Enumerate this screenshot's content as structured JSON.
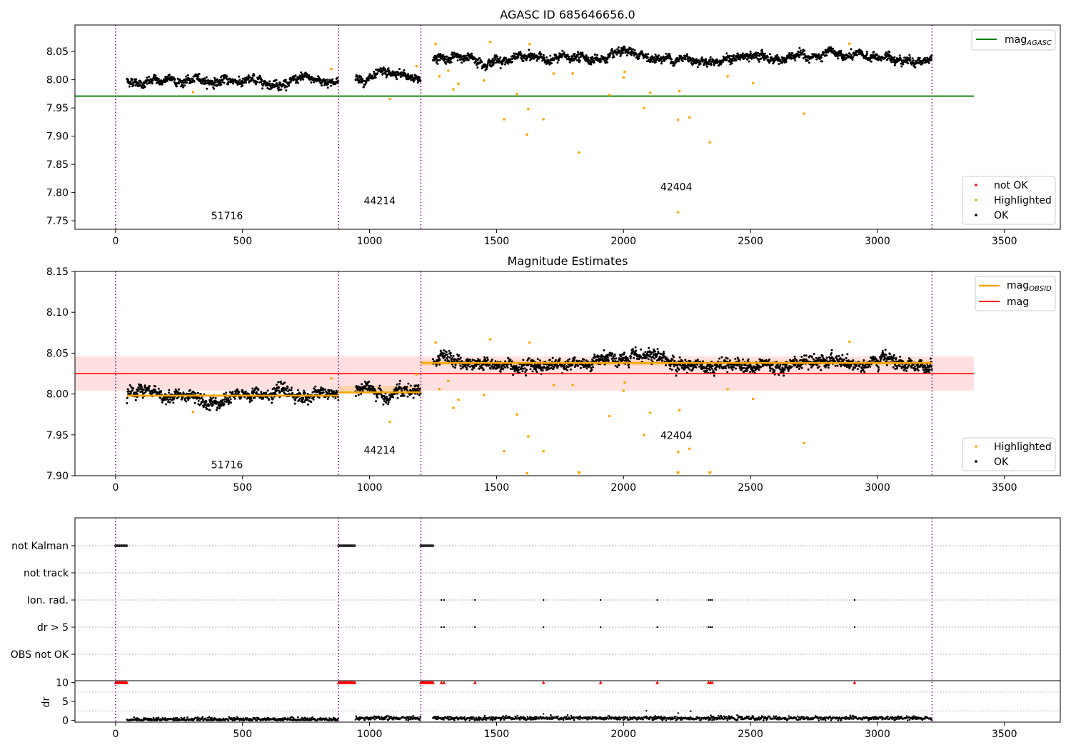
{
  "chart_data": [
    {
      "type": "scatter",
      "title": "AGASC ID 685646656.0",
      "xlim": [
        -160,
        3720
      ],
      "ylim": [
        7.735,
        8.097
      ],
      "xticks": [
        0,
        500,
        1000,
        1500,
        2000,
        2500,
        3000,
        3500
      ],
      "yticks": [
        7.75,
        7.8,
        7.85,
        7.9,
        7.95,
        8.0,
        8.05
      ],
      "grid": false,
      "legend_lines_placement": "top-right",
      "legend_points_placement": "bottom-right",
      "obsid_boundaries": [
        0,
        878,
        1202,
        3215
      ],
      "obsid_labels": [
        {
          "text": "51716",
          "x": 439,
          "y": 7.753
        },
        {
          "text": "44214",
          "x": 1040,
          "y": 7.779
        },
        {
          "text": "42404",
          "x": 2208,
          "y": 7.804
        }
      ],
      "lines": [
        {
          "name": "mag_AGASC",
          "y": 7.971,
          "xrange": [
            -160,
            3380
          ],
          "color": "#008000"
        }
      ],
      "point_legend": [
        "not OK",
        "Highlighted",
        "OK"
      ],
      "ok_segments": [
        {
          "x": [
            45,
            878
          ],
          "level": 7.998,
          "noise": 0.006
        },
        {
          "x": [
            945,
            1202
          ],
          "level": 8.003,
          "noise": 0.006
        },
        {
          "x": [
            1250,
            3215
          ],
          "level": 8.038,
          "noise": 0.006
        }
      ],
      "highlighted_points": [
        [
          305,
          7.978
        ],
        [
          850,
          8.019
        ],
        [
          1185,
          8.024
        ],
        [
          1080,
          7.966
        ],
        [
          1260,
          8.063
        ],
        [
          1275,
          8.006
        ],
        [
          1310,
          8.016
        ],
        [
          1330,
          7.983
        ],
        [
          1350,
          7.993
        ],
        [
          1450,
          7.999
        ],
        [
          1475,
          8.067
        ],
        [
          1530,
          7.93
        ],
        [
          1580,
          7.975
        ],
        [
          1620,
          7.903
        ],
        [
          1625,
          7.948
        ],
        [
          1630,
          8.063
        ],
        [
          1685,
          7.93
        ],
        [
          1725,
          8.011
        ],
        [
          1800,
          8.011
        ],
        [
          1825,
          7.871
        ],
        [
          1945,
          7.973
        ],
        [
          2000,
          8.004
        ],
        [
          2005,
          8.014
        ],
        [
          2080,
          7.95
        ],
        [
          2105,
          7.977
        ],
        [
          2215,
          7.929
        ],
        [
          2220,
          7.98
        ],
        [
          2215,
          7.765
        ],
        [
          2260,
          7.933
        ],
        [
          2340,
          7.889
        ],
        [
          2410,
          8.006
        ],
        [
          2510,
          7.994
        ],
        [
          2710,
          7.94
        ],
        [
          2890,
          8.064
        ]
      ],
      "point_colors": {
        "not_ok": "#ff0000",
        "highlighted": "#ffa500",
        "ok": "#000000"
      }
    },
    {
      "type": "scatter",
      "title": "Magnitude Estimates",
      "xlim": [
        -160,
        3720
      ],
      "ylim": [
        7.9,
        8.15
      ],
      "xticks": [
        0,
        500,
        1000,
        1500,
        2000,
        2500,
        3000,
        3500
      ],
      "yticks": [
        7.9,
        7.95,
        8.0,
        8.05,
        8.1,
        8.15
      ],
      "grid": false,
      "legend_lines_placement": "top-right",
      "legend_points_placement": "bottom-right",
      "obsid_boundaries": [
        0,
        878,
        1202,
        3215
      ],
      "obsid_labels": [
        {
          "text": "51716",
          "x": 439,
          "y": 7.909
        },
        {
          "text": "44214",
          "x": 1040,
          "y": 7.927
        },
        {
          "text": "42404",
          "x": 2208,
          "y": 7.945
        }
      ],
      "lines": [
        {
          "name": "mag_OBSID",
          "color": "#ffa500"
        },
        {
          "name": "mag",
          "color": "#ff0000"
        }
      ],
      "mag": {
        "y": 8.025,
        "band": [
          8.004,
          8.046
        ],
        "xrange": [
          -160,
          3380
        ]
      },
      "mag_obsid": [
        {
          "x": [
            45,
            878
          ],
          "y": 7.998,
          "band": [
            7.996,
            8.0
          ]
        },
        {
          "x": [
            878,
            1202
          ],
          "y": 8.002,
          "band": [
            8.0,
            8.01
          ]
        },
        {
          "x": [
            1202,
            3215
          ],
          "y": 8.038,
          "band": [
            8.035,
            8.041
          ]
        }
      ],
      "point_legend": [
        "Highlighted",
        "OK"
      ],
      "ok_segments": [
        {
          "x": [
            45,
            878
          ],
          "level": 7.998,
          "noise": 0.006
        },
        {
          "x": [
            945,
            1202
          ],
          "level": 8.003,
          "noise": 0.006
        },
        {
          "x": [
            1250,
            3215
          ],
          "level": 8.038,
          "noise": 0.006
        }
      ],
      "highlighted_points": [
        [
          305,
          7.978
        ],
        [
          850,
          8.019
        ],
        [
          1185,
          8.024
        ],
        [
          1080,
          7.966
        ],
        [
          1260,
          8.063
        ],
        [
          1275,
          8.006
        ],
        [
          1310,
          8.016
        ],
        [
          1330,
          7.983
        ],
        [
          1350,
          7.993
        ],
        [
          1450,
          7.999
        ],
        [
          1475,
          8.067
        ],
        [
          1530,
          7.93
        ],
        [
          1580,
          7.975
        ],
        [
          1620,
          7.903
        ],
        [
          1625,
          7.948
        ],
        [
          1630,
          8.063
        ],
        [
          1685,
          7.93
        ],
        [
          1725,
          8.011
        ],
        [
          1800,
          8.011
        ],
        [
          1945,
          7.973
        ],
        [
          2000,
          8.004
        ],
        [
          2005,
          8.014
        ],
        [
          2080,
          7.95
        ],
        [
          2105,
          7.977
        ],
        [
          2215,
          7.929
        ],
        [
          2220,
          7.98
        ],
        [
          2260,
          7.933
        ],
        [
          2410,
          8.006
        ],
        [
          2510,
          7.994
        ],
        [
          2710,
          7.94
        ],
        [
          2890,
          8.064
        ]
      ],
      "offscale_markers": [
        1825,
        2215,
        2340
      ],
      "point_colors": {
        "highlighted": "#ffa500",
        "ok": "#000000"
      }
    },
    {
      "type": "scatter",
      "title": "",
      "xlim": [
        -160,
        3720
      ],
      "xticks": [
        0,
        500,
        1000,
        1500,
        2000,
        2500,
        3000,
        3500
      ],
      "obsid_boundaries": [
        0,
        878,
        1202,
        3215
      ],
      "flag_rows": [
        "not Kalman",
        "not track",
        "Ion. rad.",
        "dr > 5",
        "OBS not OK"
      ],
      "flags": {
        "not Kalman": [
          [
            0,
            45
          ],
          [
            878,
            945
          ],
          [
            1202,
            1250
          ]
        ],
        "not track": [],
        "Ion. rad.": [
          1283,
          1293,
          1415,
          1685,
          1910,
          2133,
          2335,
          2342,
          2349,
          2910
        ],
        "dr > 5": [
          1283,
          1293,
          1415,
          1685,
          1910,
          2133,
          2335,
          2342,
          2349,
          2910
        ],
        "OBS not OK": []
      },
      "dr": {
        "ylabel": "dr",
        "ylim": [
          -0.5,
          10.5
        ],
        "yticks": [
          0,
          5,
          10
        ],
        "clip_value": 10,
        "clipped_ranges": [
          [
            0,
            45
          ],
          [
            878,
            945
          ],
          [
            1202,
            1250
          ]
        ],
        "clipped_points": [
          1283,
          1293,
          1415,
          1685,
          1910,
          2133,
          2335,
          2342,
          2349,
          2910
        ],
        "segments": [
          {
            "x": [
              45,
              878
            ],
            "level": 0.25
          },
          {
            "x": [
              945,
              1202
            ],
            "level": 0.55
          },
          {
            "x": [
              1250,
              3215
            ],
            "level": 0.55
          }
        ],
        "spikes": [
          [
            1685,
            1.7
          ],
          [
            2090,
            2.5
          ],
          [
            2215,
            1.9
          ],
          [
            2265,
            2.4
          ],
          [
            1780,
            1.4
          ]
        ]
      }
    }
  ]
}
